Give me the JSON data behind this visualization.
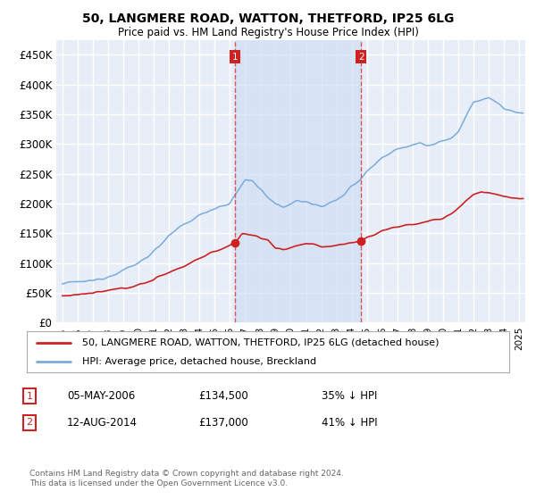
{
  "title": "50, LANGMERE ROAD, WATTON, THETFORD, IP25 6LG",
  "subtitle": "Price paid vs. HM Land Registry's House Price Index (HPI)",
  "legend_line1": "50, LANGMERE ROAD, WATTON, THETFORD, IP25 6LG (detached house)",
  "legend_line2": "HPI: Average price, detached house, Breckland",
  "purchase1_date": "05-MAY-2006",
  "purchase1_price": "£134,500",
  "purchase1_hpi": "35% ↓ HPI",
  "purchase1_year": 2006.35,
  "purchase2_date": "12-AUG-2014",
  "purchase2_price": "£137,000",
  "purchase2_hpi": "41% ↓ HPI",
  "purchase2_year": 2014.62,
  "ylim": [
    0,
    475000
  ],
  "yticks": [
    0,
    50000,
    100000,
    150000,
    200000,
    250000,
    300000,
    350000,
    400000,
    450000
  ],
  "footer": "Contains HM Land Registry data © Crown copyright and database right 2024.\nThis data is licensed under the Open Government Licence v3.0.",
  "hpi_color": "#7aabdc",
  "price_color": "#cc2222",
  "vline_color": "#dd4444",
  "background_color": "#e8eef8",
  "shade_color": "#d0dff5",
  "grid_color": "#ffffff",
  "box_color": "#cc2222"
}
